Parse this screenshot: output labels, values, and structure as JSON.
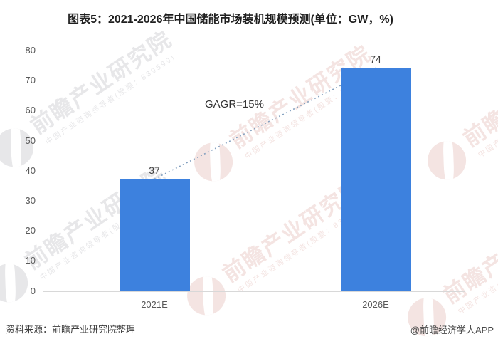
{
  "chart_data": {
    "type": "bar",
    "title": "图表5：2021-2026年中国储能市场装机规模预测(单位：GW，%)",
    "categories": [
      "2021E",
      "2026E"
    ],
    "values": [
      37,
      74
    ],
    "value_labels": [
      "37",
      "74"
    ],
    "annotation": "GAGR=15%",
    "unit": "GW",
    "ylim": [
      0,
      80
    ],
    "yticks": [
      0,
      10,
      20,
      30,
      40,
      50,
      60,
      70,
      80
    ],
    "grid": false,
    "legend_position": "none",
    "bar_color": "#3d81de",
    "trendline": {
      "style": "dotted",
      "color": "#7f9dbd",
      "from_category": "2021E",
      "to_category": "2026E"
    }
  },
  "footer": {
    "source": "资料来源：前瞻产业研究院整理",
    "credit": "@前瞻经济学人APP"
  },
  "watermark": {
    "brand": "前瞻产业研究院",
    "tagline": "中国产业咨询领导者(股票：839599)",
    "gray_color": "#e7e7e9",
    "pink_color": "#f4e4e2"
  }
}
